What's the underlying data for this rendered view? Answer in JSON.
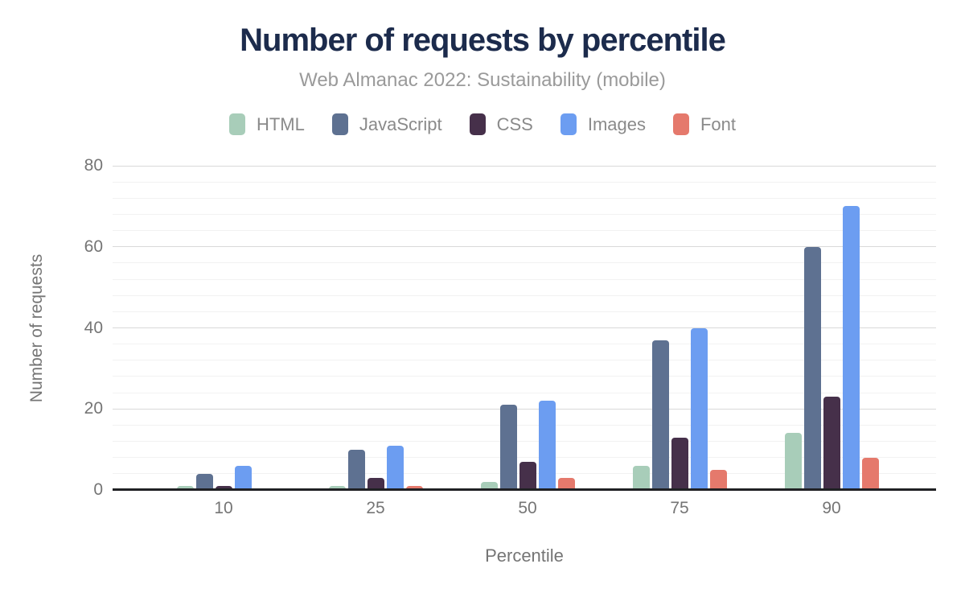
{
  "title": "Number of requests by percentile",
  "subtitle": "Web Almanac 2022: Sustainability (mobile)",
  "chart_data": {
    "type": "bar",
    "title": "Number of requests by percentile",
    "subtitle": "Web Almanac 2022: Sustainability (mobile)",
    "categories": [
      "10",
      "25",
      "50",
      "75",
      "90"
    ],
    "series": [
      {
        "name": "HTML",
        "color": "#a8cdb9",
        "values": [
          1,
          1,
          2,
          6,
          14
        ]
      },
      {
        "name": "JavaScript",
        "color": "#5e7191",
        "values": [
          4,
          10,
          21,
          37,
          60
        ]
      },
      {
        "name": "CSS",
        "color": "#46304a",
        "values": [
          1,
          3,
          7,
          13,
          23
        ]
      },
      {
        "name": "Images",
        "color": "#6c9df1",
        "values": [
          6,
          11,
          22,
          40,
          70
        ]
      },
      {
        "name": "Font",
        "color": "#e5796c",
        "values": [
          0,
          1,
          3,
          5,
          8
        ]
      }
    ],
    "xlabel": "Percentile",
    "ylabel": "Number of requests",
    "ylim": [
      0,
      80
    ],
    "yticks": [
      0,
      20,
      40,
      60,
      80
    ],
    "minor_grid_step": 4,
    "grid": true,
    "legend_position": "top"
  },
  "colors": {
    "title": "#1c2b4c",
    "subtitle": "#9a9a9a",
    "tick_label": "#757575",
    "legend_label": "#8a8a8a",
    "axis_line": "#202124",
    "major_grid": "#d9d9d9",
    "minor_grid": "#f2f2f2",
    "background": "#ffffff"
  }
}
